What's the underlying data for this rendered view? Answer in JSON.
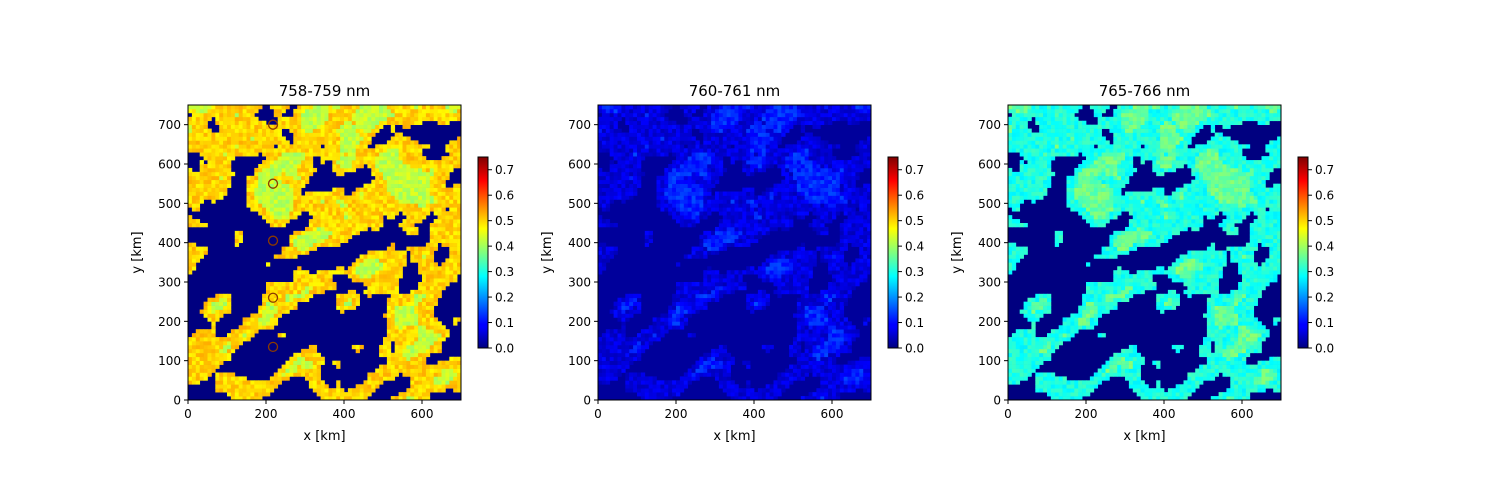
{
  "chart_data": [
    {
      "type": "heatmap",
      "title": "758-759 nm",
      "xlabel": "x [km]",
      "ylabel": "y [km]",
      "xlim": [
        0,
        700
      ],
      "ylim": [
        0,
        750
      ],
      "xticks": [
        0,
        200,
        400,
        600
      ],
      "yticks": [
        0,
        100,
        200,
        300,
        400,
        500,
        600,
        700
      ],
      "colorbar": {
        "range": [
          0.0,
          0.75
        ],
        "ticks": [
          "0.0",
          "0.1",
          "0.2",
          "0.3",
          "0.4",
          "0.5",
          "0.6",
          "0.7"
        ],
        "colormap": "jet"
      },
      "clear_value": 0.0,
      "cloud_value": 0.5,
      "bright_value": 0.42,
      "markers": [
        {
          "x": 218,
          "y": 700
        },
        {
          "x": 218,
          "y": 550
        },
        {
          "x": 218,
          "y": 405
        },
        {
          "x": 218,
          "y": 260
        },
        {
          "x": 218,
          "y": 135
        }
      ]
    },
    {
      "type": "heatmap",
      "title": "760-761 nm",
      "xlabel": "x [km]",
      "ylabel": "y [km]",
      "xlim": [
        0,
        700
      ],
      "ylim": [
        0,
        750
      ],
      "xticks": [
        0,
        200,
        400,
        600
      ],
      "yticks": [
        0,
        100,
        200,
        300,
        400,
        500,
        600,
        700
      ],
      "colorbar": {
        "range": [
          0.0,
          0.75
        ],
        "ticks": [
          "0.0",
          "0.1",
          "0.2",
          "0.3",
          "0.4",
          "0.5",
          "0.6",
          "0.7"
        ],
        "colormap": "jet"
      },
      "clear_value": 0.02,
      "cloud_value": 0.07,
      "bright_value": 0.12
    },
    {
      "type": "heatmap",
      "title": "765-766 nm",
      "xlabel": "x [km]",
      "ylabel": "y [km]",
      "xlim": [
        0,
        700
      ],
      "ylim": [
        0,
        750
      ],
      "xticks": [
        0,
        200,
        400,
        600
      ],
      "yticks": [
        0,
        100,
        200,
        300,
        400,
        500,
        600,
        700
      ],
      "colorbar": {
        "range": [
          0.0,
          0.75
        ],
        "ticks": [
          "0.0",
          "0.1",
          "0.2",
          "0.3",
          "0.4",
          "0.5",
          "0.6",
          "0.7"
        ],
        "colormap": "jet"
      },
      "clear_value": 0.0,
      "cloud_value": 0.3,
      "bright_value": 0.36
    }
  ]
}
